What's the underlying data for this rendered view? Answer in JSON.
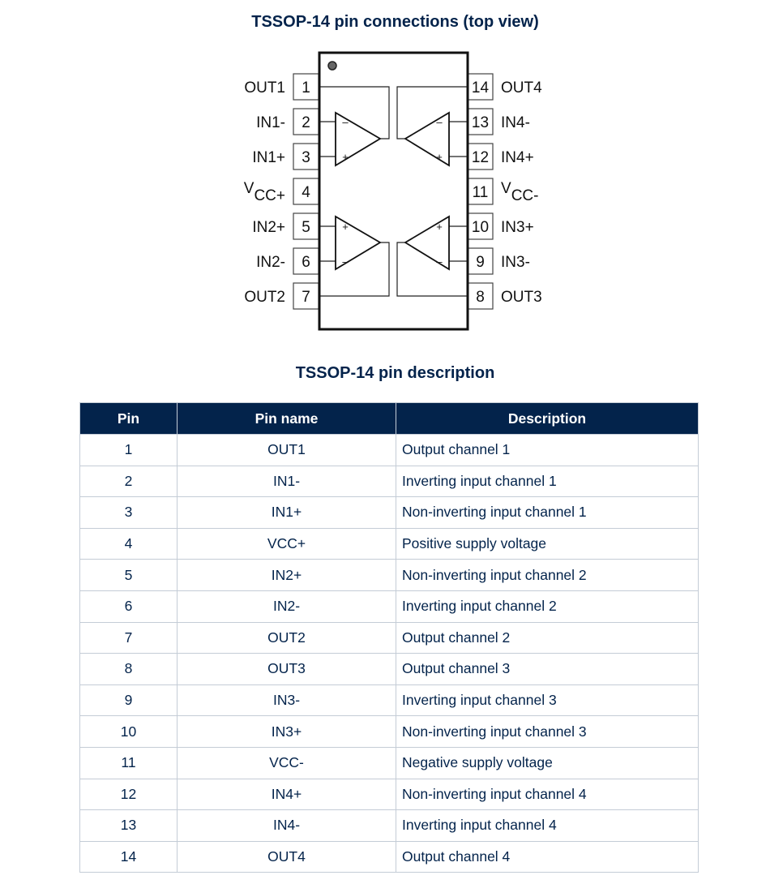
{
  "diagram": {
    "title": "TSSOP-14 pin connections (top view)",
    "left_pins": [
      {
        "num": "1",
        "label": "OUT1"
      },
      {
        "num": "2",
        "label": "IN1-"
      },
      {
        "num": "3",
        "label": "IN1+"
      },
      {
        "num": "4",
        "label": "V",
        "label_sub": "CC+"
      },
      {
        "num": "5",
        "label": "IN2+"
      },
      {
        "num": "6",
        "label": "IN2-"
      },
      {
        "num": "7",
        "label": "OUT2"
      }
    ],
    "right_pins": [
      {
        "num": "14",
        "label": "OUT4"
      },
      {
        "num": "13",
        "label": "IN4-"
      },
      {
        "num": "12",
        "label": "IN4+"
      },
      {
        "num": "11",
        "label": "V",
        "label_sub": "CC-"
      },
      {
        "num": "10",
        "label": "IN3+"
      },
      {
        "num": "9",
        "label": "IN3-"
      },
      {
        "num": "8",
        "label": "OUT3"
      }
    ],
    "plus_sign": "+",
    "minus_sign": "–"
  },
  "table": {
    "title": "TSSOP-14 pin description",
    "headers": [
      "Pin",
      "Pin name",
      "Description"
    ],
    "rows": [
      [
        "1",
        "OUT1",
        "Output channel 1"
      ],
      [
        "2",
        "IN1-",
        "Inverting input channel 1"
      ],
      [
        "3",
        "IN1+",
        "Non-inverting input channel 1"
      ],
      [
        "4",
        "VCC+",
        "Positive supply voltage"
      ],
      [
        "5",
        "IN2+",
        "Non-inverting input channel 2"
      ],
      [
        "6",
        "IN2-",
        "Inverting input channel 2"
      ],
      [
        "7",
        "OUT2",
        "Output channel 2"
      ],
      [
        "8",
        "OUT3",
        "Output channel 3"
      ],
      [
        "9",
        "IN3-",
        "Inverting input channel 3"
      ],
      [
        "10",
        "IN3+",
        "Non-inverting input channel 3"
      ],
      [
        "11",
        "VCC-",
        "Negative supply voltage"
      ],
      [
        "12",
        "IN4+",
        "Non-inverting input channel 4"
      ],
      [
        "13",
        "IN4-",
        "Inverting input channel 4"
      ],
      [
        "14",
        "OUT4",
        "Output channel 4"
      ]
    ]
  },
  "colors": {
    "header_bg": "#03234b",
    "text": "#03234b",
    "grid": "#c4ccd6"
  }
}
